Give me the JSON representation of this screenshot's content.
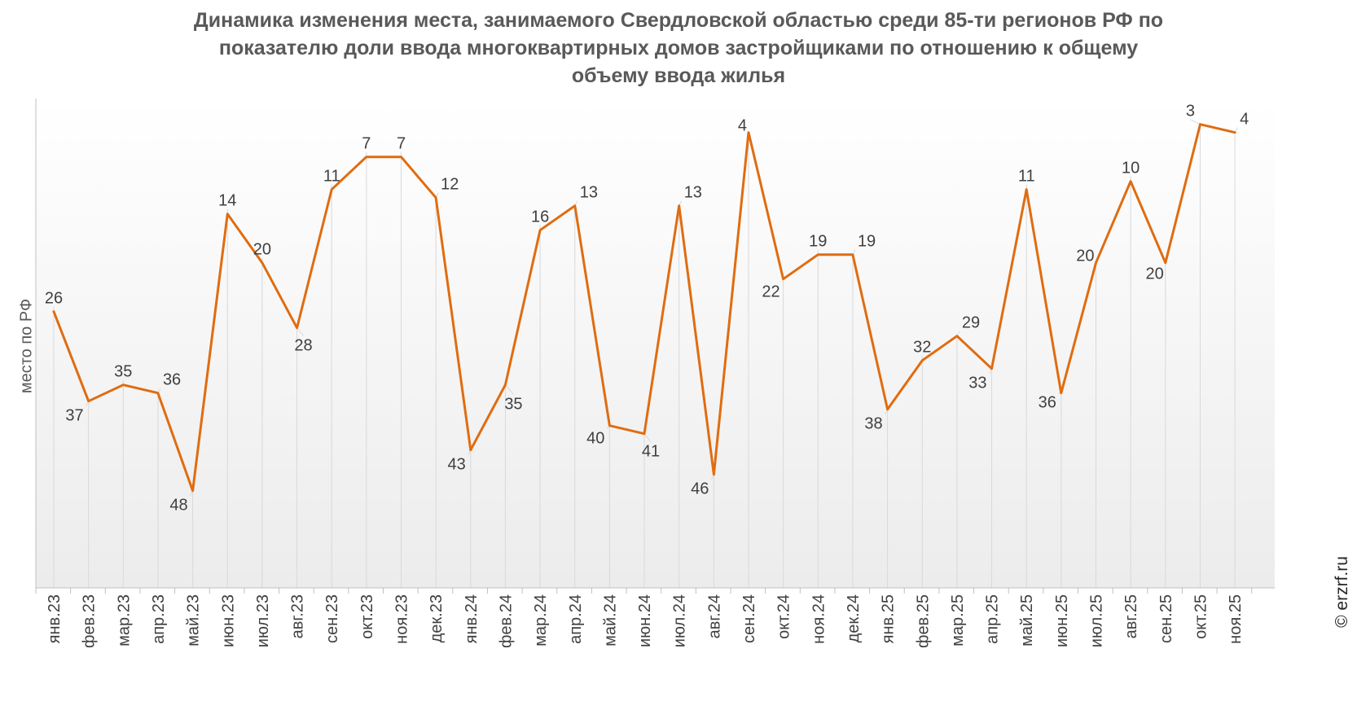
{
  "title_lines": [
    "Динамика изменения места, занимаемого Свердловской областью среди 85-ти регионов РФ по",
    "показателю доли ввода многоквартирных домов застройщиками по отношению к общему",
    "объему ввода жилья"
  ],
  "credit": "© erzrf.ru",
  "colors": {
    "line": "#E06C10",
    "text": "#404040",
    "axis": "#BFBFBF",
    "grid": "#D9D9D9"
  },
  "chart_data": {
    "type": "line",
    "title": "Динамика изменения места, занимаемого Свердловской областью среди 85-ти регионов РФ по показателю доли ввода многоквартирных домов застройщиками по отношению к общему объему ввода жилья",
    "xlabel": "",
    "ylabel": "место по РФ",
    "y_reversed": true,
    "ylim": [
      1,
      60
    ],
    "grid": "vertical",
    "legend": "none",
    "categories": [
      "янв.23",
      "фев.23",
      "мар.23",
      "апр.23",
      "май.23",
      "июн.23",
      "июл.23",
      "авг.23",
      "сен.23",
      "окт.23",
      "ноя.23",
      "дек.23",
      "янв.24",
      "фев.24",
      "мар.24",
      "апр.24",
      "май.24",
      "июн.24",
      "июл.24",
      "авг.24",
      "сен.24",
      "окт.24",
      "ноя.24",
      "дек.24",
      "янв.25",
      "фев.25",
      "мар.25",
      "апр.25",
      "май.25",
      "июн.25",
      "июл.25",
      "авг.25",
      "сен.25",
      "окт.25",
      "ноя.25"
    ],
    "series": [
      {
        "values": [
          26,
          37,
          35,
          36,
          48,
          14,
          20,
          28,
          11,
          7,
          7,
          12,
          43,
          35,
          16,
          13,
          40,
          41,
          13,
          46,
          4,
          22,
          19,
          19,
          38,
          32,
          29,
          33,
          11,
          36,
          20,
          10,
          20,
          3,
          4
        ]
      }
    ]
  }
}
